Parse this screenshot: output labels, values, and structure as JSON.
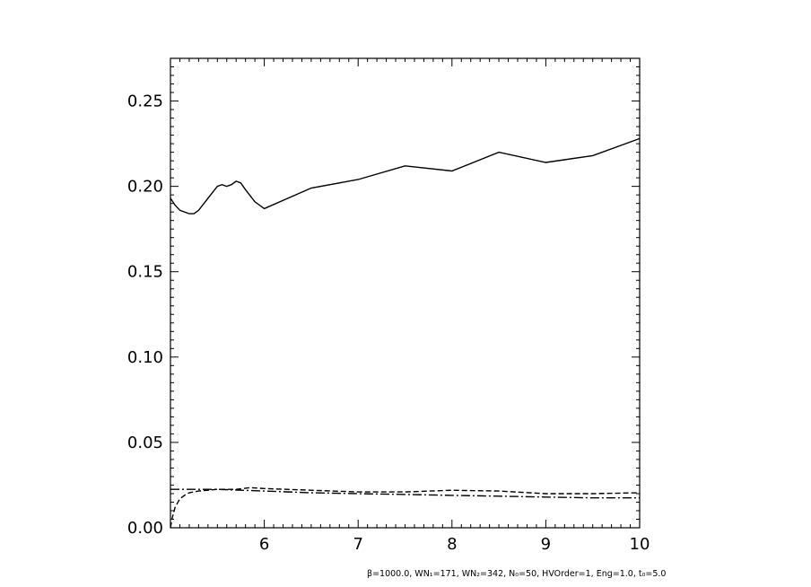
{
  "footnote": "β=1000.0, WN₁=171, WN₂=342, N₀=50, HVOrder=1, Eng=1.0, t₀=5.0",
  "chart_data": {
    "type": "line",
    "title": "",
    "xlabel": "",
    "ylabel": "",
    "xlim": [
      5.0,
      10.0
    ],
    "ylim": [
      0.0,
      0.275
    ],
    "xticks": [
      6,
      7,
      8,
      9,
      10
    ],
    "xtick_labels": [
      "6",
      "7",
      "8",
      "9",
      "10"
    ],
    "yticks": [
      0.0,
      0.05,
      0.1,
      0.15,
      0.2,
      0.25
    ],
    "ytick_labels": [
      "0.00",
      "0.05",
      "0.10",
      "0.15",
      "0.20",
      "0.25"
    ],
    "grid": false,
    "series": [
      {
        "style": "solid",
        "x": [
          5.0,
          5.05,
          5.1,
          5.2,
          5.25,
          5.3,
          5.4,
          5.5,
          5.55,
          5.6,
          5.65,
          5.7,
          5.75,
          5.8,
          5.9,
          6.0,
          6.5,
          7.0,
          7.5,
          8.0,
          8.5,
          9.0,
          9.5,
          10.0
        ],
        "y": [
          0.193,
          0.189,
          0.186,
          0.184,
          0.184,
          0.186,
          0.193,
          0.2,
          0.201,
          0.2,
          0.201,
          0.203,
          0.202,
          0.198,
          0.191,
          0.187,
          0.199,
          0.204,
          0.212,
          0.209,
          0.22,
          0.214,
          0.218,
          0.228
        ]
      },
      {
        "style": "dashed",
        "x": [
          5.0,
          5.02,
          5.05,
          5.1,
          5.15,
          5.2,
          5.3,
          5.4,
          5.5,
          5.7,
          5.85,
          6.0,
          6.5,
          7.0,
          7.5,
          8.0,
          8.5,
          9.0,
          9.5,
          10.0
        ],
        "y": [
          0.0,
          0.006,
          0.012,
          0.017,
          0.019,
          0.0205,
          0.0215,
          0.022,
          0.0225,
          0.0225,
          0.0235,
          0.023,
          0.022,
          0.021,
          0.021,
          0.022,
          0.0215,
          0.02,
          0.02,
          0.0205
        ]
      },
      {
        "style": "dash-dot",
        "x": [
          5.0,
          5.5,
          6.0,
          6.5,
          7.0,
          7.5,
          8.0,
          8.5,
          9.0,
          9.5,
          10.0
        ],
        "y": [
          0.0225,
          0.0225,
          0.0215,
          0.0205,
          0.02,
          0.0195,
          0.019,
          0.0185,
          0.018,
          0.0175,
          0.0175
        ]
      }
    ]
  }
}
